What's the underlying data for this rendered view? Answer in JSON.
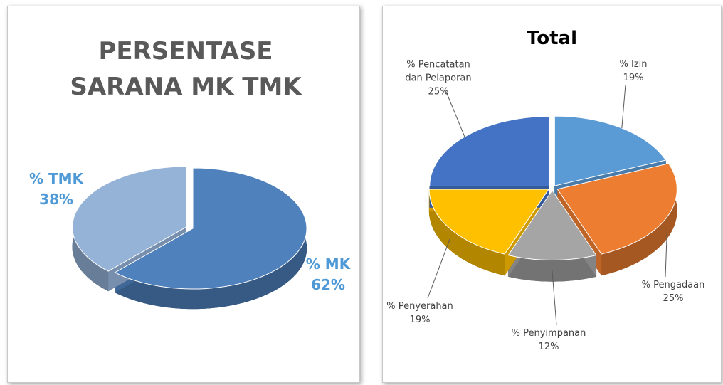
{
  "chart_data": [
    {
      "type": "pie",
      "title": "PERSENTASE SARANA MK TMK",
      "categories": [
        "% MK",
        "% TMK"
      ],
      "values": [
        62,
        38
      ],
      "value_labels": [
        "62%",
        "38%"
      ],
      "colors": [
        "#4f81bd",
        "#95b3d7"
      ]
    },
    {
      "type": "pie",
      "title": "Total",
      "categories": [
        "% Izin",
        "% Pengadaan",
        "% Penyimpanan",
        "% Penyerahan",
        "% Pencatatan dan Pelaporan"
      ],
      "values": [
        19,
        25,
        12,
        19,
        25
      ],
      "value_labels": [
        "19%",
        "25%",
        "12%",
        "19%",
        "25%"
      ],
      "colors": [
        "#5b9bd5",
        "#ed7d31",
        "#a5a5a5",
        "#ffc000",
        "#4472c4"
      ]
    }
  ]
}
